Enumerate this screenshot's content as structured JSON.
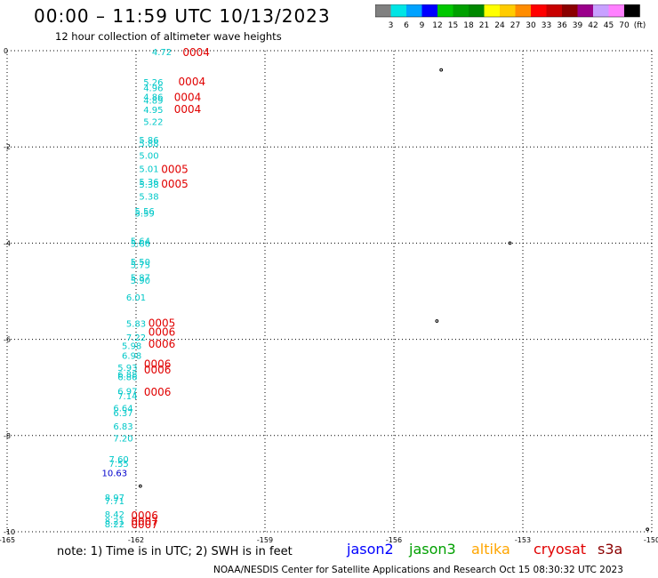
{
  "header": {
    "title": "00:00 – 11:59 UTC 10/13/2023",
    "subtitle": "12 hour collection of altimeter wave heights"
  },
  "colorbar": {
    "colors": [
      "#808080",
      "#00e5e5",
      "#00a2ff",
      "#0000ff",
      "#00c800",
      "#00a000",
      "#008800",
      "#ffff00",
      "#ffcc00",
      "#ff8c00",
      "#ff0000",
      "#c80000",
      "#8b0000",
      "#9b008b",
      "#c8a0ff",
      "#ff80ff",
      "#000000"
    ],
    "labels": [
      "3",
      "6",
      "9",
      "12",
      "15",
      "18",
      "21",
      "24",
      "27",
      "30",
      "33",
      "36",
      "39",
      "42",
      "45",
      "70",
      "(ft)"
    ]
  },
  "map": {
    "x_ticks": [
      "-165",
      "-162",
      "-159",
      "-156",
      "-153",
      "-150"
    ],
    "y_ticks": [
      "0",
      "-2",
      "-4",
      "-6",
      "-8",
      "-10"
    ],
    "lon_range": [
      -165,
      -150
    ],
    "lat_range": [
      -10,
      0
    ]
  },
  "observations": [
    {
      "text": "4.72",
      "lon": -161.4,
      "lat": -0.02,
      "color": "#00c8c8"
    },
    {
      "text": "5.26",
      "lon": -161.6,
      "lat": -0.65,
      "color": "#00c8c8"
    },
    {
      "text": "4.96",
      "lon": -161.6,
      "lat": -0.77,
      "color": "#00c8c8"
    },
    {
      "text": "4.86",
      "lon": -161.6,
      "lat": -0.95,
      "color": "#00c8c8"
    },
    {
      "text": "4.89",
      "lon": -161.6,
      "lat": -1.03,
      "color": "#00c8c8"
    },
    {
      "text": "4.95",
      "lon": -161.6,
      "lat": -1.22,
      "color": "#00c8c8"
    },
    {
      "text": "5.22",
      "lon": -161.6,
      "lat": -1.47,
      "color": "#00c8c8"
    },
    {
      "text": "5.86",
      "lon": -161.7,
      "lat": -1.85,
      "color": "#00c8c8"
    },
    {
      "text": "5.88",
      "lon": -161.7,
      "lat": -1.92,
      "color": "#00c8c8"
    },
    {
      "text": "5.00",
      "lon": -161.7,
      "lat": -2.17,
      "color": "#00c8c8"
    },
    {
      "text": "5.01",
      "lon": -161.7,
      "lat": -2.45,
      "color": "#00c8c8"
    },
    {
      "text": "5.36",
      "lon": -161.7,
      "lat": -2.72,
      "color": "#00c8c8"
    },
    {
      "text": "5.38",
      "lon": -161.7,
      "lat": -2.77,
      "color": "#00c8c8"
    },
    {
      "text": "5.38",
      "lon": -161.7,
      "lat": -3.02,
      "color": "#00c8c8"
    },
    {
      "text": "5.56",
      "lon": -161.8,
      "lat": -3.33,
      "color": "#00c8c8"
    },
    {
      "text": "5.59",
      "lon": -161.8,
      "lat": -3.37,
      "color": "#00c8c8"
    },
    {
      "text": "5.64",
      "lon": -161.9,
      "lat": -3.95,
      "color": "#00c8c8"
    },
    {
      "text": "5.66",
      "lon": -161.9,
      "lat": -4.0,
      "color": "#00c8c8"
    },
    {
      "text": "5.50",
      "lon": -161.9,
      "lat": -4.38,
      "color": "#00c8c8"
    },
    {
      "text": "5.75",
      "lon": -161.9,
      "lat": -4.45,
      "color": "#00c8c8"
    },
    {
      "text": "5.87",
      "lon": -161.9,
      "lat": -4.7,
      "color": "#00c8c8"
    },
    {
      "text": "5.90",
      "lon": -161.9,
      "lat": -4.77,
      "color": "#00c8c8"
    },
    {
      "text": "6.01",
      "lon": -162.0,
      "lat": -5.12,
      "color": "#00c8c8"
    },
    {
      "text": "5.83",
      "lon": -162.0,
      "lat": -5.67,
      "color": "#00c8c8"
    },
    {
      "text": "7.22",
      "lon": -162.0,
      "lat": -5.95,
      "color": "#00c8c8"
    },
    {
      "text": "5.98",
      "lon": -162.1,
      "lat": -6.13,
      "color": "#00c8c8"
    },
    {
      "text": "6.98",
      "lon": -162.1,
      "lat": -6.33,
      "color": "#00c8c8"
    },
    {
      "text": "5.93",
      "lon": -162.2,
      "lat": -6.58,
      "color": "#00c8c8"
    },
    {
      "text": "6.88",
      "lon": -162.2,
      "lat": -6.72,
      "color": "#00c8c8"
    },
    {
      "text": "6.86",
      "lon": -162.2,
      "lat": -6.77,
      "color": "#00c8c8"
    },
    {
      "text": "6.97",
      "lon": -162.2,
      "lat": -7.07,
      "color": "#00c8c8"
    },
    {
      "text": "7.14",
      "lon": -162.2,
      "lat": -7.17,
      "color": "#00c8c8"
    },
    {
      "text": "6.64",
      "lon": -162.3,
      "lat": -7.42,
      "color": "#00c8c8"
    },
    {
      "text": "6.37",
      "lon": -162.3,
      "lat": -7.52,
      "color": "#00c8c8"
    },
    {
      "text": "6.83",
      "lon": -162.3,
      "lat": -7.8,
      "color": "#00c8c8"
    },
    {
      "text": "7.20",
      "lon": -162.3,
      "lat": -8.05,
      "color": "#00c8c8"
    },
    {
      "text": "7.60",
      "lon": -162.4,
      "lat": -8.48,
      "color": "#00c8c8"
    },
    {
      "text": "7.55",
      "lon": -162.4,
      "lat": -8.58,
      "color": "#00c8c8"
    },
    {
      "text": "10.63",
      "lon": -162.5,
      "lat": -8.77,
      "color": "#0000cc"
    },
    {
      "text": "8.97",
      "lon": -162.5,
      "lat": -9.28,
      "color": "#00c8c8"
    },
    {
      "text": "7.71",
      "lon": -162.5,
      "lat": -9.35,
      "color": "#00c8c8"
    },
    {
      "text": "8.42",
      "lon": -162.5,
      "lat": -9.63,
      "color": "#00c8c8"
    },
    {
      "text": "8.21",
      "lon": -162.5,
      "lat": -9.77,
      "color": "#00c8c8"
    },
    {
      "text": "8.22",
      "lon": -162.5,
      "lat": -9.83,
      "color": "#00c8c8"
    }
  ],
  "time_tags": [
    {
      "text": "0004",
      "lon": -160.6,
      "lat": -0.02
    },
    {
      "text": "0004",
      "lon": -160.7,
      "lat": -0.63
    },
    {
      "text": "0004",
      "lon": -160.8,
      "lat": -0.95
    },
    {
      "text": "0004",
      "lon": -160.8,
      "lat": -1.2
    },
    {
      "text": "0005",
      "lon": -161.1,
      "lat": -2.45
    },
    {
      "text": "0005",
      "lon": -161.1,
      "lat": -2.75
    },
    {
      "text": "0005",
      "lon": -161.4,
      "lat": -5.65
    },
    {
      "text": "0006",
      "lon": -161.4,
      "lat": -5.83
    },
    {
      "text": "0006",
      "lon": -161.4,
      "lat": -6.08
    },
    {
      "text": "0006",
      "lon": -161.5,
      "lat": -6.5
    },
    {
      "text": "0006",
      "lon": -161.5,
      "lat": -6.62
    },
    {
      "text": "0006",
      "lon": -161.5,
      "lat": -7.08
    },
    {
      "text": "0006",
      "lon": -161.8,
      "lat": -9.65
    },
    {
      "text": "0007",
      "lon": -161.8,
      "lat": -9.77
    },
    {
      "text": "0007",
      "lon": -161.8,
      "lat": -9.83
    }
  ],
  "note": "note:  1) Time is in UTC;  2) SWH is in feet",
  "satellites": [
    {
      "name": "jason2",
      "color": "#0000ff"
    },
    {
      "name": "jason3",
      "color": "#00a000"
    },
    {
      "name": "altika",
      "color": "#ffa500"
    },
    {
      "name": "cryosat",
      "color": "#e00000"
    },
    {
      "name": "s3a",
      "color": "#8b0000"
    }
  ],
  "footer": "NOAA/NESDIS Center for Satellite Applications and Research     Oct 15 08:30:32 UTC 2023"
}
